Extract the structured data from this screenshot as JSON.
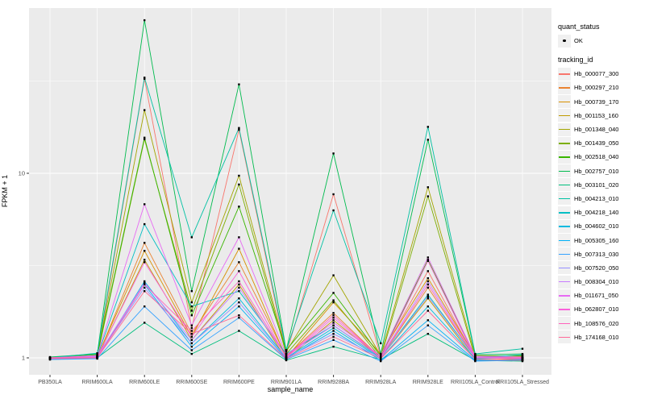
{
  "figure": {
    "background": "#FFFFFF",
    "panel_bg": "#EBEBEB",
    "grid_color": "#FFFFFF",
    "tick_label_color": "#4D4D4D",
    "point_color": "#000000"
  },
  "axes": {
    "x_title": "sample_name",
    "y_title": "FPKM + 1",
    "y_tick_labels": [
      "1",
      "10"
    ]
  },
  "legend": {
    "quant_status_title": "quant_status",
    "quant_status_items": [
      "OK"
    ],
    "tracking_title": "tracking_id"
  },
  "chart_data": {
    "type": "line",
    "title": "",
    "xlabel": "sample_name",
    "ylabel": "FPKM + 1",
    "y_scale": "log10",
    "y_major_ticks": [
      1,
      10
    ],
    "y_minor_gridlines": [
      3.1623,
      31.623
    ],
    "ylim": [
      0.83,
      79
    ],
    "grid": true,
    "legend_position": "right",
    "point_shape": "small-black-point",
    "quant_status": "OK",
    "categories": [
      "PB350LA",
      "RRIM600LA",
      "RRIM600LE",
      "RRIM600SE",
      "RRIM600PE",
      "RRIM901LA",
      "RRIM928BA",
      "RRIM928LA",
      "RRIM928LE",
      "RRII105LA_Control",
      "RRII105LA_Stressed"
    ],
    "series": [
      {
        "name": "Hb_000077_300",
        "color": "#F8766D",
        "values": [
          1.0,
          1.02,
          32.5,
          1.45,
          17.2,
          1.05,
          7.7,
          1.02,
          2.95,
          1.0,
          1.0
        ]
      },
      {
        "name": "Hb_000297_210",
        "color": "#EA8331",
        "values": [
          1.0,
          1.0,
          4.2,
          1.35,
          3.3,
          1.02,
          1.75,
          1.0,
          2.4,
          1.0,
          0.98
        ]
      },
      {
        "name": "Hb_000739_170",
        "color": "#D89000",
        "values": [
          0.99,
          1.01,
          3.8,
          1.3,
          3.9,
          1.0,
          2.0,
          1.05,
          2.7,
          1.02,
          1.0
        ]
      },
      {
        "name": "Hb_001153_160",
        "color": "#C09B00",
        "values": [
          1.0,
          1.0,
          3.4,
          1.25,
          2.5,
          0.98,
          1.6,
          1.0,
          2.1,
          0.98,
          0.97
        ]
      },
      {
        "name": "Hb_001348_040",
        "color": "#A3A500",
        "values": [
          1.0,
          1.03,
          22.0,
          2.0,
          9.7,
          1.08,
          2.8,
          1.03,
          8.4,
          1.03,
          1.02
        ]
      },
      {
        "name": "Hb_001439_050",
        "color": "#7CAE00",
        "values": [
          1.0,
          1.02,
          15.3,
          1.8,
          8.7,
          1.05,
          2.05,
          1.0,
          7.5,
          1.0,
          1.0
        ]
      },
      {
        "name": "Hb_002518_040",
        "color": "#39B600",
        "values": [
          1.0,
          1.04,
          15.6,
          1.7,
          6.6,
          1.1,
          2.25,
          1.02,
          3.4,
          1.02,
          1.03
        ]
      },
      {
        "name": "Hb_002757_010",
        "color": "#00BB4E",
        "values": [
          1.01,
          1.05,
          67.5,
          2.3,
          30.3,
          1.1,
          12.8,
          1.05,
          15.2,
          1.04,
          1.05
        ]
      },
      {
        "name": "Hb_003101_020",
        "color": "#00BF7D",
        "values": [
          0.98,
          1.0,
          1.55,
          1.05,
          1.4,
          0.97,
          1.15,
          0.98,
          1.35,
          0.97,
          0.96
        ]
      },
      {
        "name": "Hb_004213_010",
        "color": "#00C1A3",
        "values": [
          1.0,
          1.06,
          33.0,
          4.5,
          17.6,
          1.1,
          6.3,
          1.2,
          17.85,
          1.05,
          1.12
        ]
      },
      {
        "name": "Hb_004218_140",
        "color": "#00BFC4",
        "values": [
          1.0,
          1.02,
          5.3,
          1.9,
          2.3,
          1.05,
          1.5,
          1.0,
          2.2,
          1.0,
          1.04
        ]
      },
      {
        "name": "Hb_004602_010",
        "color": "#00BAE0",
        "values": [
          0.99,
          1.0,
          2.6,
          1.2,
          2.1,
          1.0,
          1.45,
          0.99,
          1.9,
          0.99,
          1.0
        ]
      },
      {
        "name": "Hb_005305_160",
        "color": "#00B0F6",
        "values": [
          1.0,
          1.0,
          2.5,
          1.15,
          1.9,
          0.99,
          1.4,
          0.97,
          1.6,
          0.97,
          0.98
        ]
      },
      {
        "name": "Hb_007313_030",
        "color": "#35A2FF",
        "values": [
          0.98,
          0.99,
          1.9,
          1.1,
          1.65,
          0.98,
          1.25,
          0.96,
          1.5,
          0.96,
          0.97
        ]
      },
      {
        "name": "Hb_007520_050",
        "color": "#9590FF",
        "values": [
          1.0,
          1.01,
          2.4,
          1.2,
          2.0,
          1.0,
          1.35,
          1.0,
          2.15,
          1.0,
          1.0
        ]
      },
      {
        "name": "Hb_008304_010",
        "color": "#C77CFF",
        "values": [
          1.0,
          1.02,
          2.55,
          1.25,
          2.4,
          1.02,
          1.5,
          1.01,
          2.6,
          1.01,
          1.0
        ]
      },
      {
        "name": "Hb_011671_050",
        "color": "#E76BF3",
        "values": [
          1.0,
          1.03,
          6.8,
          1.5,
          4.5,
          1.04,
          1.55,
          1.03,
          3.5,
          1.02,
          1.01
        ]
      },
      {
        "name": "Hb_062807_010",
        "color": "#FA62DB",
        "values": [
          1.0,
          1.01,
          3.3,
          1.3,
          2.95,
          1.0,
          1.65,
          1.0,
          3.35,
          1.0,
          0.99
        ]
      },
      {
        "name": "Hb_108576_020",
        "color": "#FF62BC",
        "values": [
          0.99,
          1.0,
          2.5,
          1.4,
          2.6,
          1.01,
          1.7,
          1.0,
          2.5,
          1.0,
          1.0
        ]
      },
      {
        "name": "Hb_174168_010",
        "color": "#FF6A98",
        "values": [
          1.0,
          1.0,
          2.3,
          1.35,
          1.7,
          0.99,
          1.3,
          0.99,
          1.8,
          0.98,
          0.97
        ]
      }
    ]
  }
}
